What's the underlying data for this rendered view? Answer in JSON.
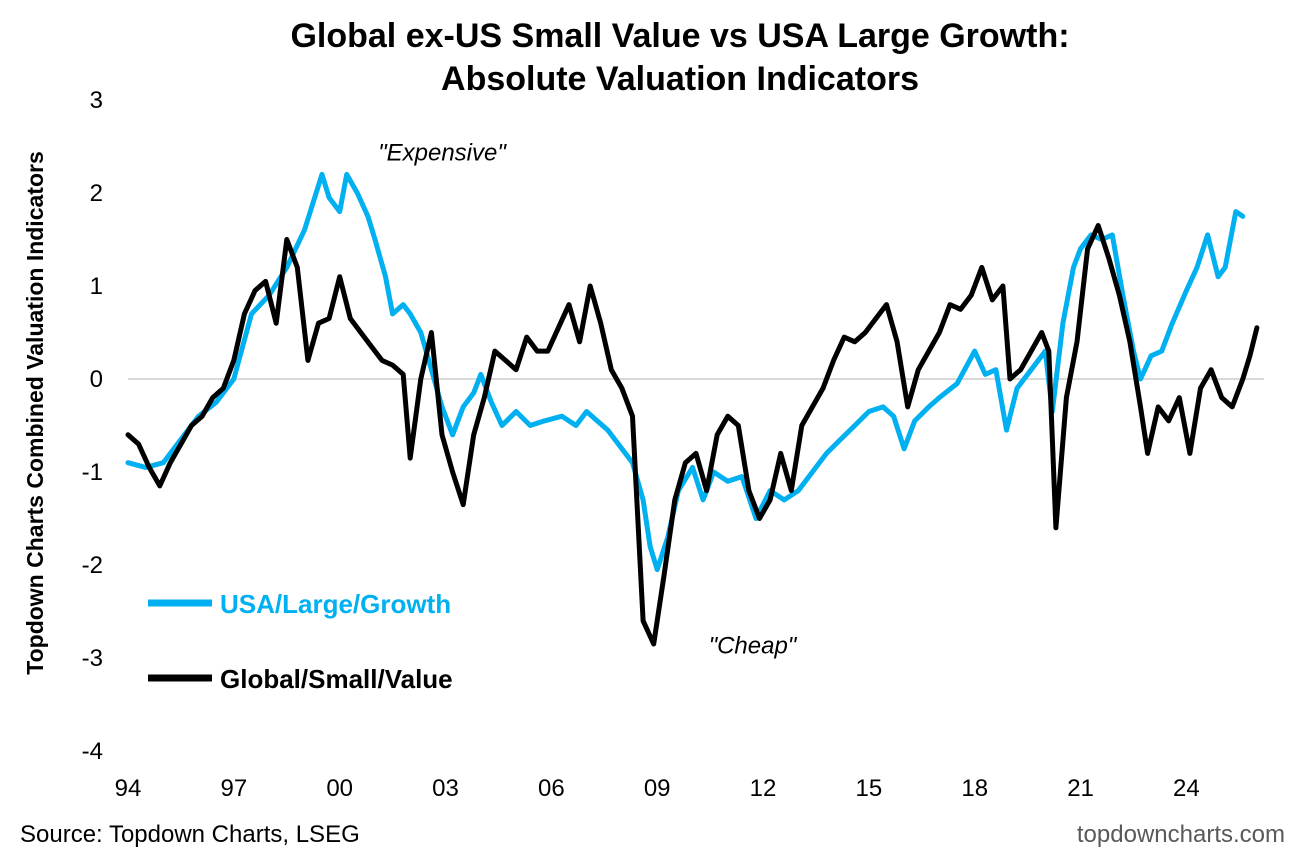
{
  "chart_data": {
    "type": "line",
    "title_line1": "Global ex-US Small Value vs USA Large Growth:",
    "title_line2": "Absolute Valuation Indicators",
    "ylabel": "Topdown Charts Combined Valuation Indicators",
    "xlabel": "",
    "ylim": [
      -4,
      3
    ],
    "yticks": [
      3,
      2,
      1,
      0,
      -1,
      -2,
      -3,
      -4
    ],
    "xlim": [
      1994,
      2025.75
    ],
    "xticks": [
      {
        "label": "94",
        "year": 1994
      },
      {
        "label": "97",
        "year": 1997
      },
      {
        "label": "00",
        "year": 2000
      },
      {
        "label": "03",
        "year": 2003
      },
      {
        "label": "06",
        "year": 2006
      },
      {
        "label": "09",
        "year": 2009
      },
      {
        "label": "12",
        "year": 2012
      },
      {
        "label": "15",
        "year": 2015
      },
      {
        "label": "18",
        "year": 2018
      },
      {
        "label": "21",
        "year": 2021
      },
      {
        "label": "24",
        "year": 2024
      }
    ],
    "zero_line": true,
    "grid": false,
    "legend_position": "bottom-left",
    "annotations": [
      {
        "text": "\"Expensive\"",
        "x": 2002.9,
        "y": 2.35
      },
      {
        "text": "\"Cheap\"",
        "x": 2011.7,
        "y": -2.95
      }
    ],
    "series": [
      {
        "name": "USA/Large/Growth",
        "color": "#00B0F0",
        "points": [
          [
            1994.0,
            -0.9
          ],
          [
            1994.5,
            -0.95
          ],
          [
            1995.0,
            -0.9
          ],
          [
            1995.5,
            -0.65
          ],
          [
            1996.0,
            -0.4
          ],
          [
            1996.5,
            -0.25
          ],
          [
            1997.0,
            0.0
          ],
          [
            1997.5,
            0.7
          ],
          [
            1998.0,
            0.9
          ],
          [
            1998.5,
            1.2
          ],
          [
            1999.0,
            1.6
          ],
          [
            1999.5,
            2.2
          ],
          [
            1999.7,
            1.95
          ],
          [
            2000.0,
            1.8
          ],
          [
            2000.2,
            2.2
          ],
          [
            2000.5,
            2.0
          ],
          [
            2000.8,
            1.75
          ],
          [
            2001.0,
            1.5
          ],
          [
            2001.3,
            1.1
          ],
          [
            2001.5,
            0.7
          ],
          [
            2001.8,
            0.8
          ],
          [
            2002.0,
            0.7
          ],
          [
            2002.3,
            0.5
          ],
          [
            2002.6,
            0.1
          ],
          [
            2002.9,
            -0.3
          ],
          [
            2003.2,
            -0.6
          ],
          [
            2003.5,
            -0.3
          ],
          [
            2003.8,
            -0.15
          ],
          [
            2004.0,
            0.05
          ],
          [
            2004.3,
            -0.25
          ],
          [
            2004.6,
            -0.5
          ],
          [
            2005.0,
            -0.35
          ],
          [
            2005.4,
            -0.5
          ],
          [
            2005.8,
            -0.45
          ],
          [
            2006.3,
            -0.4
          ],
          [
            2006.7,
            -0.5
          ],
          [
            2007.0,
            -0.35
          ],
          [
            2007.3,
            -0.45
          ],
          [
            2007.6,
            -0.55
          ],
          [
            2008.0,
            -0.75
          ],
          [
            2008.3,
            -0.9
          ],
          [
            2008.6,
            -1.3
          ],
          [
            2008.8,
            -1.8
          ],
          [
            2009.0,
            -2.05
          ],
          [
            2009.3,
            -1.7
          ],
          [
            2009.6,
            -1.2
          ],
          [
            2010.0,
            -0.95
          ],
          [
            2010.3,
            -1.3
          ],
          [
            2010.6,
            -1.0
          ],
          [
            2011.0,
            -1.1
          ],
          [
            2011.4,
            -1.05
          ],
          [
            2011.8,
            -1.5
          ],
          [
            2012.2,
            -1.2
          ],
          [
            2012.6,
            -1.3
          ],
          [
            2013.0,
            -1.2
          ],
          [
            2013.4,
            -1.0
          ],
          [
            2013.8,
            -0.8
          ],
          [
            2014.2,
            -0.65
          ],
          [
            2014.6,
            -0.5
          ],
          [
            2015.0,
            -0.35
          ],
          [
            2015.4,
            -0.3
          ],
          [
            2015.7,
            -0.4
          ],
          [
            2016.0,
            -0.75
          ],
          [
            2016.3,
            -0.45
          ],
          [
            2016.7,
            -0.3
          ],
          [
            2017.0,
            -0.2
          ],
          [
            2017.5,
            -0.05
          ],
          [
            2018.0,
            0.3
          ],
          [
            2018.3,
            0.05
          ],
          [
            2018.6,
            0.1
          ],
          [
            2018.9,
            -0.55
          ],
          [
            2019.2,
            -0.1
          ],
          [
            2019.6,
            0.1
          ],
          [
            2020.0,
            0.3
          ],
          [
            2020.2,
            -0.35
          ],
          [
            2020.5,
            0.6
          ],
          [
            2020.8,
            1.2
          ],
          [
            2021.0,
            1.4
          ],
          [
            2021.3,
            1.55
          ],
          [
            2021.6,
            1.5
          ],
          [
            2021.9,
            1.55
          ],
          [
            2022.2,
            0.9
          ],
          [
            2022.5,
            0.3
          ],
          [
            2022.7,
            0.0
          ],
          [
            2023.0,
            0.25
          ],
          [
            2023.3,
            0.3
          ],
          [
            2023.6,
            0.6
          ],
          [
            2024.0,
            0.95
          ],
          [
            2024.3,
            1.2
          ],
          [
            2024.6,
            1.55
          ],
          [
            2024.9,
            1.1
          ],
          [
            2025.1,
            1.2
          ],
          [
            2025.4,
            1.8
          ],
          [
            2025.6,
            1.75
          ]
        ]
      },
      {
        "name": "Global/Small/Value",
        "color": "#000000",
        "points": [
          [
            1994.0,
            -0.6
          ],
          [
            1994.3,
            -0.7
          ],
          [
            1994.6,
            -0.95
          ],
          [
            1994.9,
            -1.15
          ],
          [
            1995.2,
            -0.9
          ],
          [
            1995.5,
            -0.7
          ],
          [
            1995.8,
            -0.5
          ],
          [
            1996.1,
            -0.4
          ],
          [
            1996.4,
            -0.2
          ],
          [
            1996.7,
            -0.1
          ],
          [
            1997.0,
            0.2
          ],
          [
            1997.3,
            0.7
          ],
          [
            1997.6,
            0.95
          ],
          [
            1997.9,
            1.05
          ],
          [
            1998.2,
            0.6
          ],
          [
            1998.5,
            1.5
          ],
          [
            1998.8,
            1.2
          ],
          [
            1999.1,
            0.2
          ],
          [
            1999.4,
            0.6
          ],
          [
            1999.7,
            0.65
          ],
          [
            2000.0,
            1.1
          ],
          [
            2000.3,
            0.65
          ],
          [
            2000.6,
            0.5
          ],
          [
            2000.9,
            0.35
          ],
          [
            2001.2,
            0.2
          ],
          [
            2001.5,
            0.15
          ],
          [
            2001.8,
            0.05
          ],
          [
            2002.0,
            -0.85
          ],
          [
            2002.3,
            0.0
          ],
          [
            2002.6,
            0.5
          ],
          [
            2002.9,
            -0.6
          ],
          [
            2003.2,
            -1.0
          ],
          [
            2003.5,
            -1.35
          ],
          [
            2003.8,
            -0.6
          ],
          [
            2004.1,
            -0.2
          ],
          [
            2004.4,
            0.3
          ],
          [
            2004.7,
            0.2
          ],
          [
            2005.0,
            0.1
          ],
          [
            2005.3,
            0.45
          ],
          [
            2005.6,
            0.3
          ],
          [
            2005.9,
            0.3
          ],
          [
            2006.2,
            0.55
          ],
          [
            2006.5,
            0.8
          ],
          [
            2006.8,
            0.4
          ],
          [
            2007.1,
            1.0
          ],
          [
            2007.4,
            0.6
          ],
          [
            2007.7,
            0.1
          ],
          [
            2008.0,
            -0.1
          ],
          [
            2008.3,
            -0.4
          ],
          [
            2008.6,
            -2.6
          ],
          [
            2008.9,
            -2.85
          ],
          [
            2009.2,
            -2.1
          ],
          [
            2009.5,
            -1.3
          ],
          [
            2009.8,
            -0.9
          ],
          [
            2010.1,
            -0.8
          ],
          [
            2010.4,
            -1.2
          ],
          [
            2010.7,
            -0.6
          ],
          [
            2011.0,
            -0.4
          ],
          [
            2011.3,
            -0.5
          ],
          [
            2011.6,
            -1.2
          ],
          [
            2011.9,
            -1.5
          ],
          [
            2012.2,
            -1.3
          ],
          [
            2012.5,
            -0.8
          ],
          [
            2012.8,
            -1.2
          ],
          [
            2013.1,
            -0.5
          ],
          [
            2013.4,
            -0.3
          ],
          [
            2013.7,
            -0.1
          ],
          [
            2014.0,
            0.2
          ],
          [
            2014.3,
            0.45
          ],
          [
            2014.6,
            0.4
          ],
          [
            2014.9,
            0.5
          ],
          [
            2015.2,
            0.65
          ],
          [
            2015.5,
            0.8
          ],
          [
            2015.8,
            0.4
          ],
          [
            2016.1,
            -0.3
          ],
          [
            2016.4,
            0.1
          ],
          [
            2016.7,
            0.3
          ],
          [
            2017.0,
            0.5
          ],
          [
            2017.3,
            0.8
          ],
          [
            2017.6,
            0.75
          ],
          [
            2017.9,
            0.9
          ],
          [
            2018.2,
            1.2
          ],
          [
            2018.5,
            0.85
          ],
          [
            2018.8,
            1.0
          ],
          [
            2019.0,
            0.0
          ],
          [
            2019.3,
            0.1
          ],
          [
            2019.6,
            0.3
          ],
          [
            2019.9,
            0.5
          ],
          [
            2020.1,
            0.3
          ],
          [
            2020.3,
            -1.6
          ],
          [
            2020.6,
            -0.2
          ],
          [
            2020.9,
            0.4
          ],
          [
            2021.2,
            1.4
          ],
          [
            2021.5,
            1.65
          ],
          [
            2021.8,
            1.3
          ],
          [
            2022.1,
            0.9
          ],
          [
            2022.4,
            0.4
          ],
          [
            2022.7,
            -0.3
          ],
          [
            2022.9,
            -0.8
          ],
          [
            2023.2,
            -0.3
          ],
          [
            2023.5,
            -0.45
          ],
          [
            2023.8,
            -0.2
          ],
          [
            2024.1,
            -0.8
          ],
          [
            2024.4,
            -0.1
          ],
          [
            2024.7,
            0.1
          ],
          [
            2025.0,
            -0.2
          ],
          [
            2025.3,
            -0.3
          ],
          [
            2025.6,
            0.0
          ],
          [
            2025.8,
            0.25
          ],
          [
            2026.0,
            0.55
          ]
        ]
      }
    ],
    "source": "Source: Topdown Charts, LSEG",
    "website": "topdowncharts.com"
  }
}
